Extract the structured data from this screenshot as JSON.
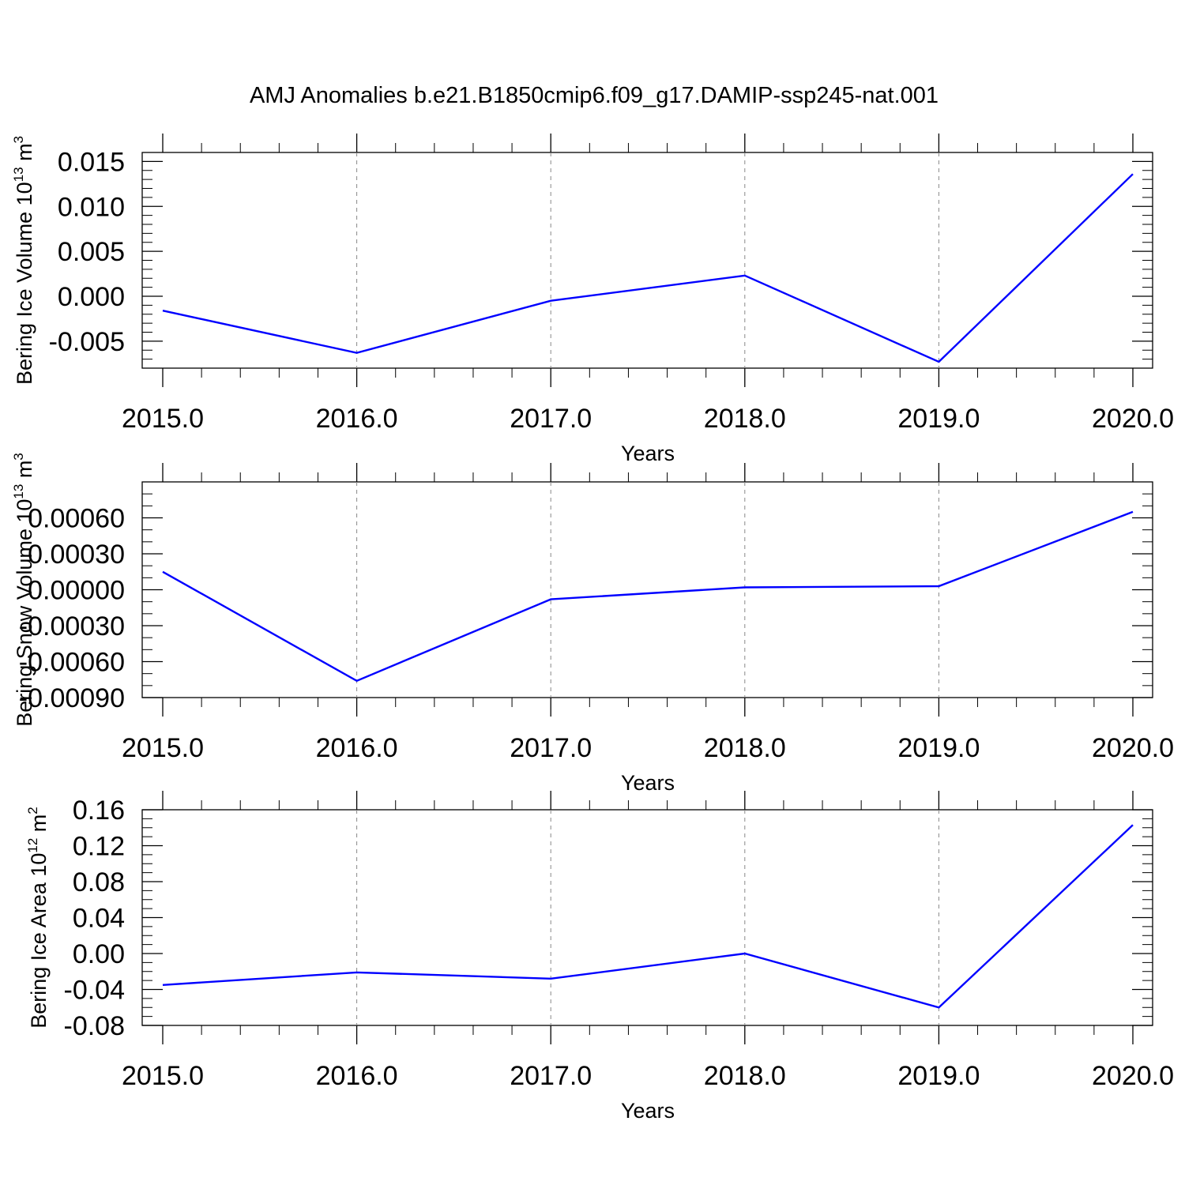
{
  "figure": {
    "title": "AMJ Anomalies b.e21.B1850cmip6.f09_g17.DAMIP-ssp245-nat.001",
    "line_color": "#0000ff",
    "grid_color": "#888888"
  },
  "chart_data": [
    {
      "type": "line",
      "title": "",
      "xlabel": "Years",
      "ylabel": "Bering Ice Volume 10",
      "ylabel_sup": "13",
      "ylabel_unit": "m",
      "ylabel_unit_sup": "3",
      "x": [
        2015,
        2016,
        2017,
        2018,
        2019,
        2020
      ],
      "x_tick_labels": [
        "2015.0",
        "2016.0",
        "2017.0",
        "2018.0",
        "2019.0",
        "2020.0"
      ],
      "xlim": [
        2015,
        2020
      ],
      "ylim": [
        -0.008,
        0.016
      ],
      "y_ticks": [
        -0.005,
        0.0,
        0.005,
        0.01,
        0.015
      ],
      "y_tick_labels": [
        "-0.005",
        "0.000",
        "0.005",
        "0.010",
        "0.015"
      ],
      "y_minor_step": 0.001,
      "series": [
        {
          "values": [
            -0.0016,
            -0.0063,
            -0.0005,
            0.0023,
            -0.0073,
            0.0136
          ]
        }
      ],
      "grid": "vertical dashed at major x ticks"
    },
    {
      "type": "line",
      "title": "",
      "xlabel": "Years",
      "ylabel": "Bering Snow Volume 10",
      "ylabel_sup": "13",
      "ylabel_unit": "m",
      "ylabel_unit_sup": "3",
      "x": [
        2015,
        2016,
        2017,
        2018,
        2019,
        2020
      ],
      "x_tick_labels": [
        "2015.0",
        "2016.0",
        "2017.0",
        "2018.0",
        "2019.0",
        "2020.0"
      ],
      "xlim": [
        2015,
        2020
      ],
      "ylim": [
        -0.0009,
        0.0009
      ],
      "y_ticks": [
        -0.0009,
        -0.0006,
        -0.0003,
        0.0,
        0.0003,
        0.0006
      ],
      "y_tick_labels": [
        "-0.00090",
        "-0.00060",
        "-0.00030",
        "0.00000",
        "0.00030",
        "0.00060"
      ],
      "y_minor_step": 0.0001,
      "series": [
        {
          "values": [
            0.00015,
            -0.00076,
            -8e-05,
            2e-05,
            3e-05,
            0.00065
          ]
        }
      ],
      "grid": "vertical dashed at major x ticks"
    },
    {
      "type": "line",
      "title": "",
      "xlabel": "Years",
      "ylabel": "Bering Ice Area 10",
      "ylabel_sup": "12",
      "ylabel_unit": "m",
      "ylabel_unit_sup": "2",
      "x": [
        2015,
        2016,
        2017,
        2018,
        2019,
        2020
      ],
      "x_tick_labels": [
        "2015.0",
        "2016.0",
        "2017.0",
        "2018.0",
        "2019.0",
        "2020.0"
      ],
      "xlim": [
        2015,
        2020
      ],
      "ylim": [
        -0.08,
        0.16
      ],
      "y_ticks": [
        -0.08,
        -0.04,
        0.0,
        0.04,
        0.08,
        0.12,
        0.16
      ],
      "y_tick_labels": [
        "-0.08",
        "-0.04",
        "0.00",
        "0.04",
        "0.08",
        "0.12",
        "0.16"
      ],
      "y_minor_step": 0.01,
      "series": [
        {
          "values": [
            -0.035,
            -0.021,
            -0.028,
            0.0,
            -0.06,
            0.143
          ]
        }
      ],
      "grid": "vertical dashed at major x ticks"
    }
  ]
}
